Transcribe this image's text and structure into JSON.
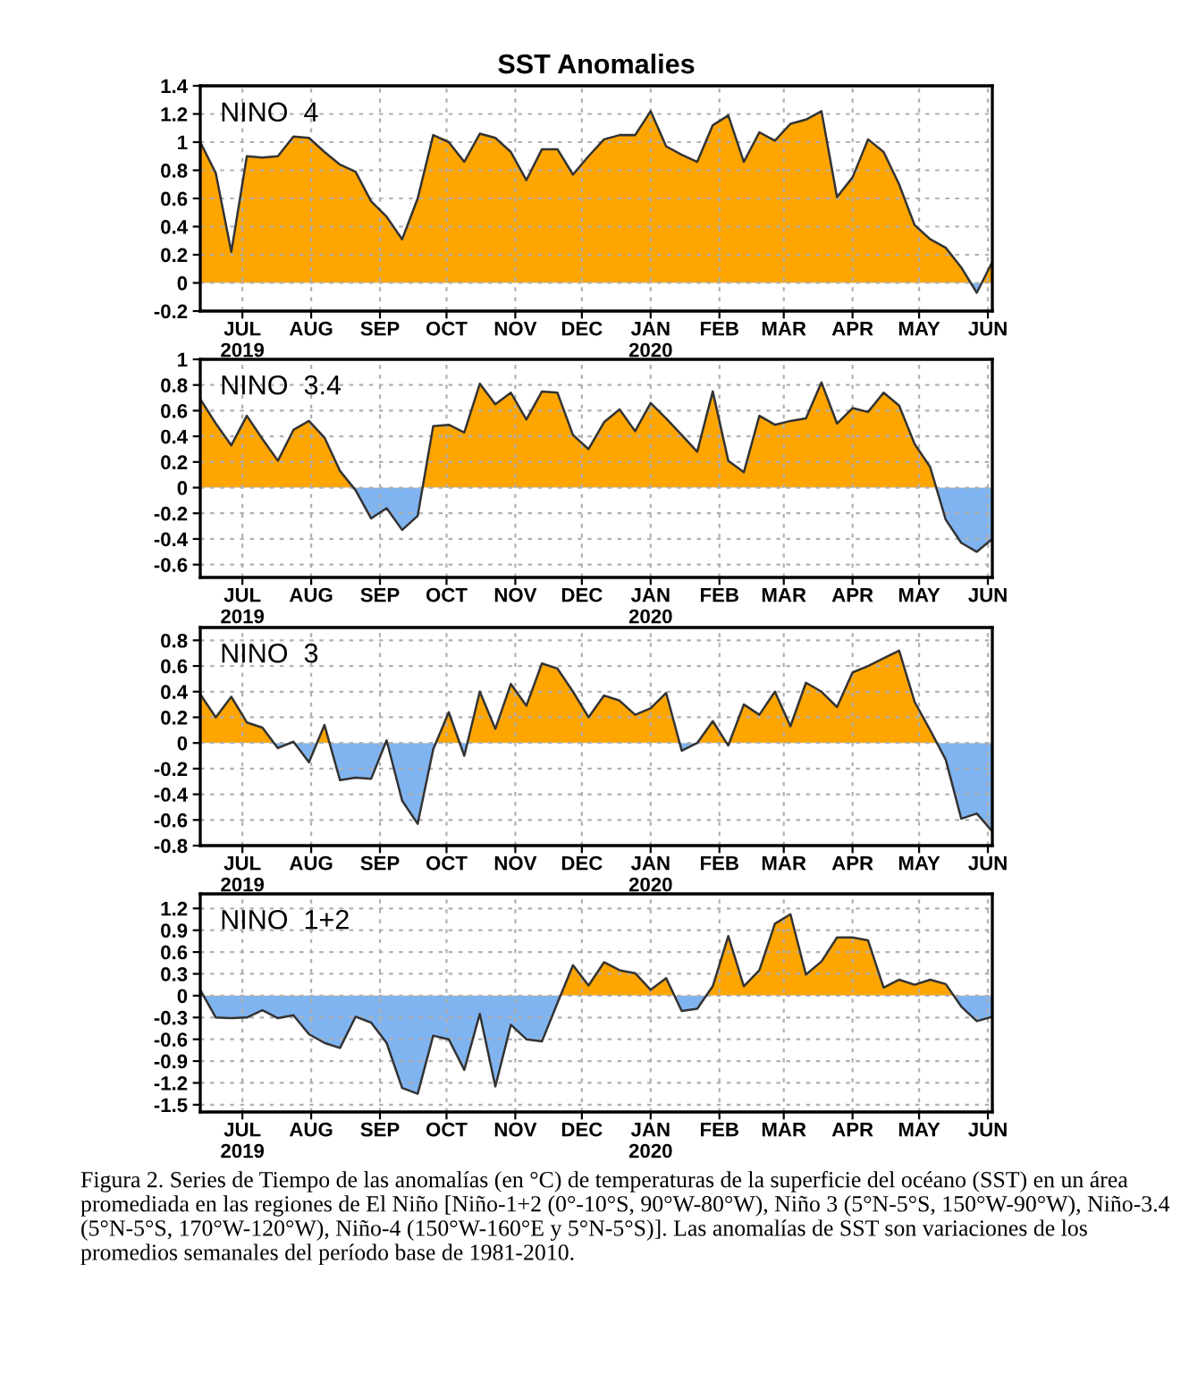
{
  "chart_data": [
    {
      "type": "area",
      "title": "SST Anomalies",
      "annotations": [
        "NINO  4"
      ],
      "xlim": [
        "2019-06-12",
        "2020-06-03"
      ],
      "ylim": [
        -0.2,
        1.4
      ],
      "yticks": [
        -0.2,
        0,
        0.2,
        0.4,
        0.6,
        0.8,
        1,
        1.2,
        1.4
      ],
      "grid": true,
      "x": [
        "2019-06-12",
        "2019-06-19",
        "2019-06-26",
        "2019-07-03",
        "2019-07-10",
        "2019-07-17",
        "2019-07-24",
        "2019-07-31",
        "2019-08-07",
        "2019-08-14",
        "2019-08-21",
        "2019-08-28",
        "2019-09-04",
        "2019-09-11",
        "2019-09-18",
        "2019-09-25",
        "2019-10-02",
        "2019-10-09",
        "2019-10-16",
        "2019-10-23",
        "2019-10-30",
        "2019-11-06",
        "2019-11-13",
        "2019-11-20",
        "2019-11-27",
        "2019-12-04",
        "2019-12-11",
        "2019-12-18",
        "2019-12-25",
        "2020-01-01",
        "2020-01-08",
        "2020-01-15",
        "2020-01-22",
        "2020-01-29",
        "2020-02-05",
        "2020-02-12",
        "2020-02-19",
        "2020-02-26",
        "2020-03-04",
        "2020-03-11",
        "2020-03-18",
        "2020-03-25",
        "2020-04-01",
        "2020-04-08",
        "2020-04-15",
        "2020-04-22",
        "2020-04-29",
        "2020-05-06",
        "2020-05-13",
        "2020-05-20",
        "2020-05-27",
        "2020-06-03"
      ],
      "xticks": [
        {
          "value": "2019-07-01",
          "label": "JUL\n2019"
        },
        {
          "value": "2019-08-01",
          "label": "AUG"
        },
        {
          "value": "2019-09-01",
          "label": "SEP"
        },
        {
          "value": "2019-10-01",
          "label": "OCT"
        },
        {
          "value": "2019-11-01",
          "label": "NOV"
        },
        {
          "value": "2019-12-01",
          "label": "DEC"
        },
        {
          "value": "2020-01-01",
          "label": "JAN\n2020"
        },
        {
          "value": "2020-02-01",
          "label": "FEB"
        },
        {
          "value": "2020-03-01",
          "label": "MAR"
        },
        {
          "value": "2020-04-01",
          "label": "APR"
        },
        {
          "value": "2020-05-01",
          "label": "MAY"
        },
        {
          "value": "2020-06-01",
          "label": "JUN"
        }
      ],
      "series": [
        {
          "color": "#333333",
          "values": [
            1.0,
            0.78,
            0.22,
            0.9,
            0.89,
            0.9,
            1.04,
            1.03,
            0.93,
            0.84,
            0.79,
            0.58,
            0.47,
            0.31,
            0.6,
            1.05,
            1.0,
            0.86,
            1.06,
            1.03,
            0.93,
            0.73,
            0.95,
            0.95,
            0.77,
            0.9,
            1.02,
            1.05,
            1.05,
            1.22,
            0.97,
            0.91,
            0.86,
            1.12,
            1.19,
            0.86,
            1.07,
            1.01,
            1.13,
            1.16,
            1.22,
            0.61,
            0.75,
            1.02,
            0.93,
            0.7,
            0.41,
            0.31,
            0.25,
            0.11,
            -0.07,
            0.15
          ],
          "colors": [
            "#ffa500",
            "#ffa500",
            "#ffa500",
            "#ffa500",
            "#ffa500",
            "#ffa500",
            "#ffa500",
            "#ffa500",
            "#ffa500",
            "#ffa500",
            "#ffa500",
            "#ffa500",
            "#ffa500",
            "#ffa500",
            "#ffa500",
            "#ffa500",
            "#ffa500",
            "#ffa500",
            "#ffa500",
            "#ffa500",
            "#ffa500",
            "#ffa500",
            "#ffa500",
            "#ffa500",
            "#ffa500",
            "#ffa500",
            "#ffa500",
            "#ffa500",
            "#ffa500",
            "#ffa500",
            "#ffa500",
            "#ffa500",
            "#ffa500",
            "#ffa500",
            "#ffa500",
            "#ffa500",
            "#ffa500",
            "#ffa500",
            "#ffa500",
            "#ffa500",
            "#ffa500",
            "#ffa500",
            "#ffa500",
            "#ffa500",
            "#ffa500",
            "#ffa500",
            "#ffa500",
            "#ffa500",
            "#ffa500",
            "#ffa500",
            "#80b4f0",
            "#ffa500"
          ]
        }
      ]
    },
    {
      "type": "area",
      "annotations": [
        "NINO  3.4"
      ],
      "xlim": [
        "2019-06-12",
        "2020-06-03"
      ],
      "ylim": [
        -0.7,
        1
      ],
      "yticks": [
        -0.6,
        -0.4,
        -0.2,
        0,
        0.2,
        0.4,
        0.6,
        0.8,
        1
      ],
      "grid": true,
      "x": [
        "2019-06-12",
        "2019-06-19",
        "2019-06-26",
        "2019-07-03",
        "2019-07-10",
        "2019-07-17",
        "2019-07-24",
        "2019-07-31",
        "2019-08-07",
        "2019-08-14",
        "2019-08-21",
        "2019-08-28",
        "2019-09-04",
        "2019-09-11",
        "2019-09-18",
        "2019-09-25",
        "2019-10-02",
        "2019-10-09",
        "2019-10-16",
        "2019-10-23",
        "2019-10-30",
        "2019-11-06",
        "2019-11-13",
        "2019-11-20",
        "2019-11-27",
        "2019-12-04",
        "2019-12-11",
        "2019-12-18",
        "2019-12-25",
        "2020-01-01",
        "2020-01-08",
        "2020-01-15",
        "2020-01-22",
        "2020-01-29",
        "2020-02-05",
        "2020-02-12",
        "2020-02-19",
        "2020-02-26",
        "2020-03-04",
        "2020-03-11",
        "2020-03-18",
        "2020-03-25",
        "2020-04-01",
        "2020-04-08",
        "2020-04-15",
        "2020-04-22",
        "2020-04-29",
        "2020-05-06",
        "2020-05-13",
        "2020-05-20",
        "2020-05-27",
        "2020-06-03"
      ],
      "xticks": [
        {
          "value": "2019-07-01",
          "label": "JUL\n2019"
        },
        {
          "value": "2019-08-01",
          "label": "AUG"
        },
        {
          "value": "2019-09-01",
          "label": "SEP"
        },
        {
          "value": "2019-10-01",
          "label": "OCT"
        },
        {
          "value": "2019-11-01",
          "label": "NOV"
        },
        {
          "value": "2019-12-01",
          "label": "DEC"
        },
        {
          "value": "2020-01-01",
          "label": "JAN\n2020"
        },
        {
          "value": "2020-02-01",
          "label": "FEB"
        },
        {
          "value": "2020-03-01",
          "label": "MAR"
        },
        {
          "value": "2020-04-01",
          "label": "APR"
        },
        {
          "value": "2020-05-01",
          "label": "MAY"
        },
        {
          "value": "2020-06-01",
          "label": "JUN"
        }
      ],
      "series": [
        {
          "color": "#333333",
          "values": [
            0.69,
            0.5,
            0.33,
            0.56,
            0.38,
            0.21,
            0.45,
            0.52,
            0.39,
            0.13,
            -0.02,
            -0.24,
            -0.16,
            -0.33,
            -0.22,
            0.48,
            0.49,
            0.43,
            0.81,
            0.65,
            0.74,
            0.53,
            0.75,
            0.74,
            0.41,
            0.3,
            0.51,
            0.61,
            0.44,
            0.66,
            0.54,
            0.41,
            0.28,
            0.75,
            0.21,
            0.12,
            0.56,
            0.49,
            0.52,
            0.54,
            0.82,
            0.5,
            0.62,
            0.59,
            0.74,
            0.64,
            0.34,
            0.16,
            -0.25,
            -0.43,
            -0.5,
            -0.4
          ],
          "colors": [
            "#ffa500",
            "#ffa500",
            "#ffa500",
            "#ffa500",
            "#ffa500",
            "#ffa500",
            "#ffa500",
            "#ffa500",
            "#ffa500",
            "#ffa500",
            "#80b4f0",
            "#80b4f0",
            "#80b4f0",
            "#80b4f0",
            "#80b4f0",
            "#ffa500",
            "#ffa500",
            "#ffa500",
            "#ffa500",
            "#ffa500",
            "#ffa500",
            "#ffa500",
            "#ffa500",
            "#ffa500",
            "#ffa500",
            "#ffa500",
            "#ffa500",
            "#ffa500",
            "#ffa500",
            "#ffa500",
            "#ffa500",
            "#ffa500",
            "#ffa500",
            "#ffa500",
            "#ffa500",
            "#ffa500",
            "#ffa500",
            "#ffa500",
            "#ffa500",
            "#ffa500",
            "#ffa500",
            "#ffa500",
            "#ffa500",
            "#ffa500",
            "#ffa500",
            "#ffa500",
            "#ffa500",
            "#ffa500",
            "#80b4f0",
            "#80b4f0",
            "#80b4f0",
            "#80b4f0"
          ]
        }
      ]
    },
    {
      "type": "area",
      "annotations": [
        "NINO  3"
      ],
      "xlim": [
        "2019-06-12",
        "2020-06-03"
      ],
      "ylim": [
        -0.8,
        0.9
      ],
      "yticks": [
        -0.8,
        -0.6,
        -0.4,
        -0.2,
        0,
        0.2,
        0.4,
        0.6,
        0.8
      ],
      "grid": true,
      "x": [
        "2019-06-12",
        "2019-06-19",
        "2019-06-26",
        "2019-07-03",
        "2019-07-10",
        "2019-07-17",
        "2019-07-24",
        "2019-07-31",
        "2019-08-07",
        "2019-08-14",
        "2019-08-21",
        "2019-08-28",
        "2019-09-04",
        "2019-09-11",
        "2019-09-18",
        "2019-09-25",
        "2019-10-02",
        "2019-10-09",
        "2019-10-16",
        "2019-10-23",
        "2019-10-30",
        "2019-11-06",
        "2019-11-13",
        "2019-11-20",
        "2019-11-27",
        "2019-12-04",
        "2019-12-11",
        "2019-12-18",
        "2019-12-25",
        "2020-01-01",
        "2020-01-08",
        "2020-01-15",
        "2020-01-22",
        "2020-01-29",
        "2020-02-05",
        "2020-02-12",
        "2020-02-19",
        "2020-02-26",
        "2020-03-04",
        "2020-03-11",
        "2020-03-18",
        "2020-03-25",
        "2020-04-01",
        "2020-04-08",
        "2020-04-15",
        "2020-04-22",
        "2020-04-29",
        "2020-05-06",
        "2020-05-13",
        "2020-05-20",
        "2020-05-27",
        "2020-06-03"
      ],
      "xticks": [
        {
          "value": "2019-07-01",
          "label": "JUL\n2019"
        },
        {
          "value": "2019-08-01",
          "label": "AUG"
        },
        {
          "value": "2019-09-01",
          "label": "SEP"
        },
        {
          "value": "2019-10-01",
          "label": "OCT"
        },
        {
          "value": "2019-11-01",
          "label": "NOV"
        },
        {
          "value": "2019-12-01",
          "label": "DEC"
        },
        {
          "value": "2020-01-01",
          "label": "JAN\n2020"
        },
        {
          "value": "2020-02-01",
          "label": "FEB"
        },
        {
          "value": "2020-03-01",
          "label": "MAR"
        },
        {
          "value": "2020-04-01",
          "label": "APR"
        },
        {
          "value": "2020-05-01",
          "label": "MAY"
        },
        {
          "value": "2020-06-01",
          "label": "JUN"
        }
      ],
      "series": [
        {
          "color": "#333333",
          "values": [
            0.38,
            0.2,
            0.36,
            0.16,
            0.12,
            -0.04,
            0.01,
            -0.15,
            0.14,
            -0.29,
            -0.27,
            -0.28,
            0.02,
            -0.45,
            -0.63,
            -0.05,
            0.24,
            -0.1,
            0.4,
            0.11,
            0.46,
            0.29,
            0.62,
            0.58,
            0.4,
            0.2,
            0.37,
            0.33,
            0.22,
            0.27,
            0.39,
            -0.06,
            0.0,
            0.17,
            -0.02,
            0.3,
            0.22,
            0.4,
            0.13,
            0.47,
            0.4,
            0.28,
            0.55,
            0.6,
            0.66,
            0.72,
            0.32,
            0.1,
            -0.13,
            -0.59,
            -0.55,
            -0.69
          ],
          "colors": [
            "#ffa500",
            "#ffa500",
            "#ffa500",
            "#ffa500",
            "#ffa500",
            "#80b4f0",
            "#ffa500",
            "#80b4f0",
            "#ffa500",
            "#80b4f0",
            "#80b4f0",
            "#80b4f0",
            "#ffa500",
            "#80b4f0",
            "#80b4f0",
            "#80b4f0",
            "#ffa500",
            "#80b4f0",
            "#ffa500",
            "#ffa500",
            "#ffa500",
            "#ffa500",
            "#ffa500",
            "#ffa500",
            "#ffa500",
            "#ffa500",
            "#ffa500",
            "#ffa500",
            "#ffa500",
            "#ffa500",
            "#ffa500",
            "#80b4f0",
            "#ffa500",
            "#ffa500",
            "#80b4f0",
            "#ffa500",
            "#ffa500",
            "#ffa500",
            "#ffa500",
            "#ffa500",
            "#ffa500",
            "#ffa500",
            "#ffa500",
            "#ffa500",
            "#ffa500",
            "#ffa500",
            "#ffa500",
            "#ffa500",
            "#80b4f0",
            "#80b4f0",
            "#80b4f0",
            "#80b4f0"
          ]
        }
      ]
    },
    {
      "type": "area",
      "annotations": [
        "NINO  1+2",
        "Figura 2. Series de Tiempo de las anomalías (en °C) de temperaturas de la superficie del océano (SST) en un área promediada en las regiones de El Niño [Niño-1+2 (0°-10°S, 90°W-80°W), Niño 3 (5°N-5°S, 150°W-90°W), Niño-3.4 (5°N-5°S, 170°W-120°W), Niño-4 (150°W-160°E y 5°N-5°S)]. Las anomalías de SST son variaciones de los promedios semanales del período base de 1981-2010."
      ],
      "xlim": [
        "2019-06-12",
        "2020-06-03"
      ],
      "ylim": [
        -1.6,
        1.4
      ],
      "yticks": [
        -1.5,
        -1.2,
        -0.9,
        -0.6,
        -0.3,
        0,
        0.3,
        0.6,
        0.9,
        1.2
      ],
      "grid": true,
      "x": [
        "2019-06-12",
        "2019-06-19",
        "2019-06-26",
        "2019-07-03",
        "2019-07-10",
        "2019-07-17",
        "2019-07-24",
        "2019-07-31",
        "2019-08-07",
        "2019-08-14",
        "2019-08-21",
        "2019-08-28",
        "2019-09-04",
        "2019-09-11",
        "2019-09-18",
        "2019-09-25",
        "2019-10-02",
        "2019-10-09",
        "2019-10-16",
        "2019-10-23",
        "2019-10-30",
        "2019-11-06",
        "2019-11-13",
        "2019-11-20",
        "2019-11-27",
        "2019-12-04",
        "2019-12-11",
        "2019-12-18",
        "2019-12-25",
        "2020-01-01",
        "2020-01-08",
        "2020-01-15",
        "2020-01-22",
        "2020-01-29",
        "2020-02-05",
        "2020-02-12",
        "2020-02-19",
        "2020-02-26",
        "2020-03-04",
        "2020-03-11",
        "2020-03-18",
        "2020-03-25",
        "2020-04-01",
        "2020-04-08",
        "2020-04-15",
        "2020-04-22",
        "2020-04-29",
        "2020-05-06",
        "2020-05-13",
        "2020-05-20",
        "2020-05-27",
        "2020-06-03"
      ],
      "xticks": [
        {
          "value": "2019-07-01",
          "label": "JUL\n2019"
        },
        {
          "value": "2019-08-01",
          "label": "AUG"
        },
        {
          "value": "2019-09-01",
          "label": "SEP"
        },
        {
          "value": "2019-10-01",
          "label": "OCT"
        },
        {
          "value": "2019-11-01",
          "label": "NOV"
        },
        {
          "value": "2019-12-01",
          "label": "DEC"
        },
        {
          "value": "2020-01-01",
          "label": "JAN\n2020"
        },
        {
          "value": "2020-02-01",
          "label": "FEB"
        },
        {
          "value": "2020-03-01",
          "label": "MAR"
        },
        {
          "value": "2020-04-01",
          "label": "APR"
        },
        {
          "value": "2020-05-01",
          "label": "MAY"
        },
        {
          "value": "2020-06-01",
          "label": "JUN"
        }
      ],
      "series": [
        {
          "color": "#333333",
          "values": [
            0.08,
            -0.3,
            -0.31,
            -0.3,
            -0.2,
            -0.31,
            -0.27,
            -0.53,
            -0.65,
            -0.72,
            -0.29,
            -0.37,
            -0.65,
            -1.27,
            -1.35,
            -0.55,
            -0.6,
            -1.02,
            -0.25,
            -1.25,
            -0.4,
            -0.6,
            -0.63,
            -0.1,
            0.42,
            0.14,
            0.46,
            0.35,
            0.31,
            0.08,
            0.24,
            -0.21,
            -0.18,
            0.13,
            0.82,
            0.13,
            0.35,
            0.99,
            1.12,
            0.29,
            0.47,
            0.8,
            0.8,
            0.76,
            0.11,
            0.22,
            0.15,
            0.22,
            0.16,
            -0.15,
            -0.35,
            -0.29
          ],
          "colors": [
            "#ffa500",
            "#80b4f0",
            "#80b4f0",
            "#80b4f0",
            "#80b4f0",
            "#80b4f0",
            "#80b4f0",
            "#80b4f0",
            "#80b4f0",
            "#80b4f0",
            "#80b4f0",
            "#80b4f0",
            "#80b4f0",
            "#80b4f0",
            "#80b4f0",
            "#80b4f0",
            "#80b4f0",
            "#80b4f0",
            "#80b4f0",
            "#80b4f0",
            "#80b4f0",
            "#80b4f0",
            "#80b4f0",
            "#80b4f0",
            "#ffa500",
            "#ffa500",
            "#ffa500",
            "#ffa500",
            "#ffa500",
            "#ffa500",
            "#ffa500",
            "#80b4f0",
            "#80b4f0",
            "#ffa500",
            "#ffa500",
            "#ffa500",
            "#ffa500",
            "#ffa500",
            "#ffa500",
            "#ffa500",
            "#ffa500",
            "#ffa500",
            "#ffa500",
            "#ffa500",
            "#ffa500",
            "#ffa500",
            "#ffa500",
            "#ffa500",
            "#ffa500",
            "#80b4f0",
            "#80b4f0",
            "#80b4f0"
          ]
        }
      ]
    }
  ]
}
